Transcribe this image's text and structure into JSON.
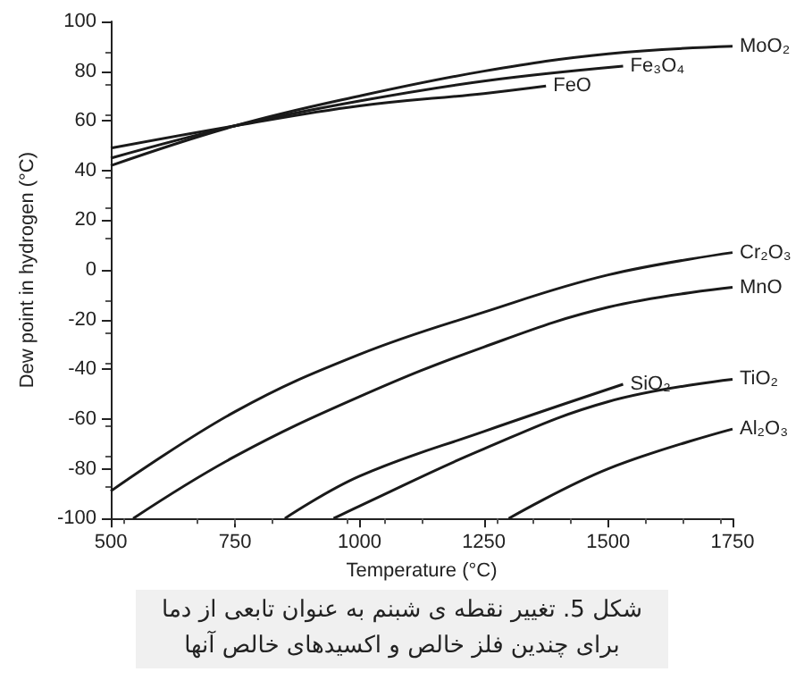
{
  "chart_data": {
    "type": "line",
    "xlabel": "Temperature (°C)",
    "ylabel": "Dew point in hydrogen (°C)",
    "xlim": [
      500,
      1750
    ],
    "xticks": [
      500,
      750,
      1000,
      1250,
      1500,
      1750
    ],
    "ylim": [
      -100,
      100
    ],
    "yticks": [
      -100,
      -80,
      -60,
      -40,
      -20,
      0,
      20,
      40,
      60,
      80,
      100
    ],
    "grid": false,
    "legend": false,
    "marker": "none",
    "line_style": "solid",
    "series": [
      {
        "name": "MoO₂",
        "color": "#1a1a1a",
        "x": [
          500,
          750,
          1000,
          1250,
          1500,
          1750
        ],
        "values": [
          42,
          58,
          70,
          80,
          87,
          90
        ]
      },
      {
        "name": "Fe₃O₄",
        "color": "#1a1a1a",
        "x": [
          500,
          750,
          1000,
          1250,
          1530
        ],
        "values": [
          45,
          58,
          68,
          76,
          82
        ]
      },
      {
        "name": "FeO",
        "color": "#1a1a1a",
        "x": [
          500,
          750,
          1000,
          1250,
          1375
        ],
        "values": [
          49,
          58,
          66,
          71,
          74
        ]
      },
      {
        "name": "Cr₂O₃",
        "color": "#1a1a1a",
        "x": [
          500,
          750,
          1000,
          1250,
          1500,
          1750
        ],
        "values": [
          -89,
          -57,
          -34,
          -17,
          -2,
          7
        ]
      },
      {
        "name": "MnO",
        "color": "#1a1a1a",
        "x": [
          545,
          750,
          1000,
          1250,
          1500,
          1750
        ],
        "values": [
          -100,
          -75,
          -51,
          -31,
          -15,
          -7
        ]
      },
      {
        "name": "SiO₂",
        "color": "#1a1a1a",
        "x": [
          850,
          1000,
          1250,
          1530
        ],
        "values": [
          -100,
          -83,
          -65,
          -46
        ]
      },
      {
        "name": "TiO₂",
        "color": "#1a1a1a",
        "x": [
          948,
          1000,
          1250,
          1500,
          1750
        ],
        "values": [
          -100,
          -95,
          -72,
          -53,
          -44
        ]
      },
      {
        "name": "Al₂O₃",
        "color": "#1a1a1a",
        "x": [
          1300,
          1500,
          1750
        ],
        "values": [
          -100,
          -80,
          -64
        ]
      }
    ],
    "annotations": [
      "شکل 5. تغییر نقطه ی شبنم به عنوان تابعی از دما برای چندین فلز خالص و اکسیدهای خالص آنها"
    ]
  }
}
